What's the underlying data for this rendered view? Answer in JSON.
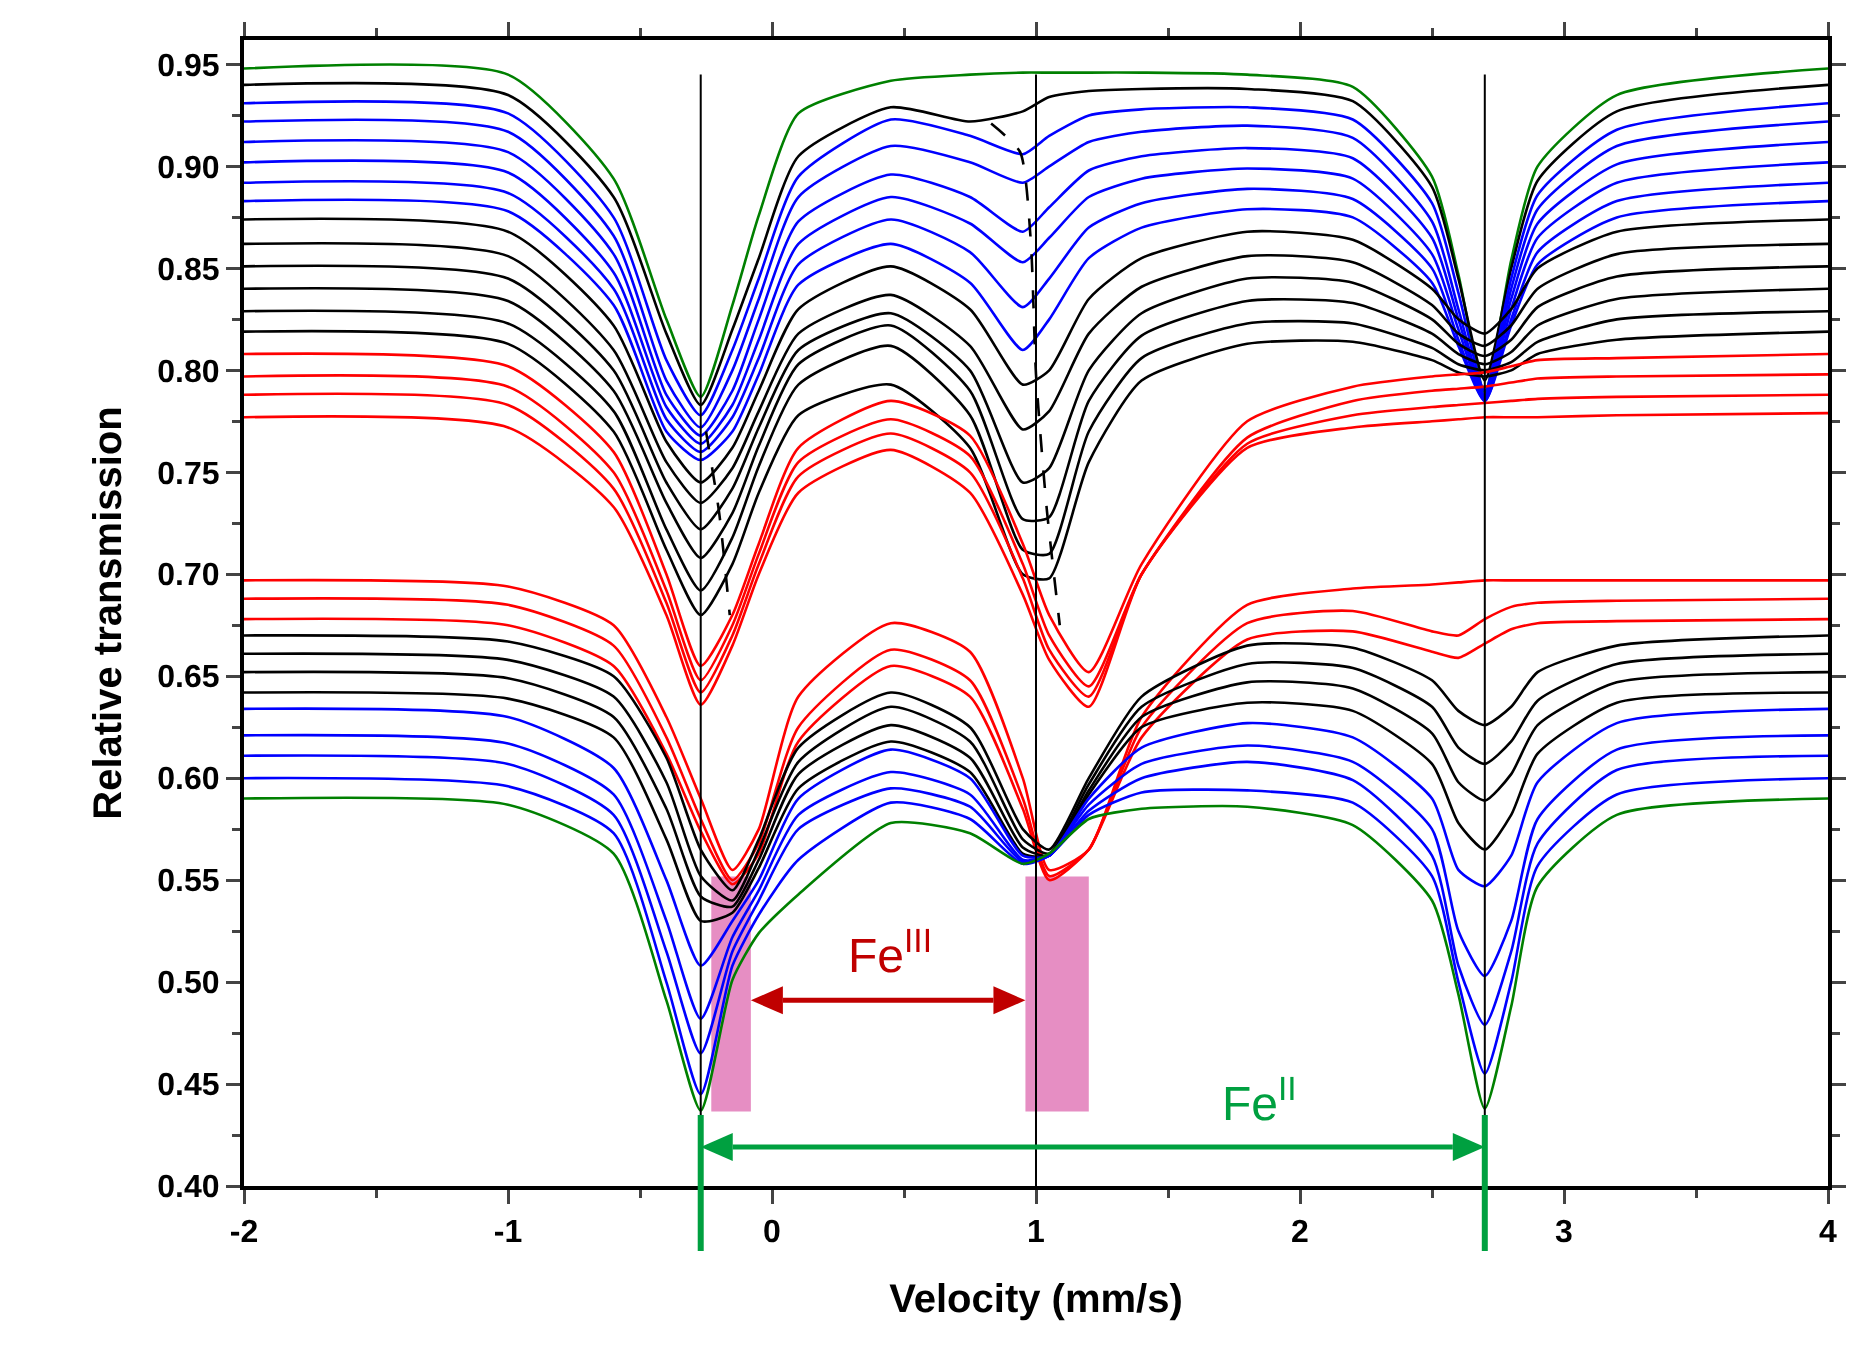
{
  "chart_data": {
    "type": "line",
    "xlabel": "Velocity (mm/s)",
    "ylabel": "Relative transmission",
    "x": [
      -2,
      -1,
      -0.6,
      -0.4,
      -0.27,
      -0.15,
      -0.05,
      0.1,
      0.45,
      0.75,
      0.95,
      1.05,
      1.2,
      1.4,
      1.8,
      2.2,
      2.5,
      2.6,
      2.7,
      2.8,
      2.9,
      3.2,
      4
    ],
    "series": [
      {
        "color": "#008000",
        "values": [
          0.948,
          0.945,
          0.894,
          0.825,
          0.787,
          0.832,
          0.876,
          0.926,
          0.942,
          0.945,
          0.946,
          0.946,
          0.946,
          0.946,
          0.945,
          0.939,
          0.895,
          0.847,
          0.789,
          0.854,
          0.9,
          0.935,
          0.948
        ]
      },
      {
        "color": "#000000",
        "values": [
          0.94,
          0.935,
          0.885,
          0.818,
          0.783,
          0.82,
          0.855,
          0.905,
          0.929,
          0.922,
          0.927,
          0.934,
          0.937,
          0.938,
          0.938,
          0.932,
          0.89,
          0.845,
          0.795,
          0.85,
          0.893,
          0.927,
          0.94
        ]
      },
      {
        "color": "#0000ff",
        "values": [
          0.931,
          0.926,
          0.875,
          0.805,
          0.778,
          0.81,
          0.845,
          0.895,
          0.923,
          0.915,
          0.906,
          0.915,
          0.925,
          0.928,
          0.929,
          0.923,
          0.882,
          0.838,
          0.79,
          0.845,
          0.886,
          0.918,
          0.931
        ]
      },
      {
        "color": "#0000ff",
        "values": [
          0.922,
          0.917,
          0.866,
          0.795,
          0.772,
          0.8,
          0.835,
          0.885,
          0.91,
          0.902,
          0.892,
          0.9,
          0.912,
          0.917,
          0.92,
          0.914,
          0.873,
          0.83,
          0.788,
          0.84,
          0.879,
          0.91,
          0.922
        ]
      },
      {
        "color": "#0000ff",
        "values": [
          0.912,
          0.907,
          0.857,
          0.788,
          0.768,
          0.79,
          0.825,
          0.873,
          0.896,
          0.885,
          0.868,
          0.88,
          0.898,
          0.905,
          0.909,
          0.904,
          0.865,
          0.825,
          0.787,
          0.835,
          0.872,
          0.901,
          0.912
        ]
      },
      {
        "color": "#0000ff",
        "values": [
          0.902,
          0.897,
          0.848,
          0.782,
          0.764,
          0.783,
          0.815,
          0.862,
          0.885,
          0.872,
          0.853,
          0.865,
          0.885,
          0.894,
          0.899,
          0.894,
          0.857,
          0.82,
          0.786,
          0.83,
          0.865,
          0.892,
          0.902
        ]
      },
      {
        "color": "#0000ff",
        "values": [
          0.892,
          0.887,
          0.84,
          0.776,
          0.76,
          0.777,
          0.806,
          0.852,
          0.874,
          0.858,
          0.831,
          0.845,
          0.87,
          0.882,
          0.889,
          0.884,
          0.85,
          0.815,
          0.785,
          0.825,
          0.858,
          0.883,
          0.892
        ]
      },
      {
        "color": "#0000ff",
        "values": [
          0.883,
          0.878,
          0.832,
          0.77,
          0.756,
          0.77,
          0.798,
          0.842,
          0.862,
          0.843,
          0.81,
          0.825,
          0.855,
          0.87,
          0.879,
          0.875,
          0.843,
          0.812,
          0.785,
          0.822,
          0.852,
          0.875,
          0.883
        ]
      },
      {
        "color": "#000000",
        "values": [
          0.874,
          0.868,
          0.822,
          0.765,
          0.745,
          0.762,
          0.79,
          0.83,
          0.851,
          0.83,
          0.793,
          0.8,
          0.835,
          0.855,
          0.868,
          0.864,
          0.84,
          0.825,
          0.818,
          0.83,
          0.85,
          0.868,
          0.874
        ]
      },
      {
        "color": "#000000",
        "values": [
          0.862,
          0.856,
          0.81,
          0.755,
          0.735,
          0.752,
          0.78,
          0.818,
          0.837,
          0.812,
          0.771,
          0.78,
          0.818,
          0.841,
          0.856,
          0.853,
          0.832,
          0.818,
          0.812,
          0.822,
          0.84,
          0.857,
          0.862
        ]
      },
      {
        "color": "#000000",
        "values": [
          0.851,
          0.845,
          0.8,
          0.745,
          0.722,
          0.742,
          0.772,
          0.81,
          0.828,
          0.8,
          0.745,
          0.752,
          0.8,
          0.828,
          0.845,
          0.843,
          0.825,
          0.813,
          0.807,
          0.815,
          0.831,
          0.846,
          0.851
        ]
      },
      {
        "color": "#000000",
        "values": [
          0.84,
          0.834,
          0.79,
          0.735,
          0.708,
          0.73,
          0.763,
          0.803,
          0.822,
          0.79,
          0.727,
          0.728,
          0.785,
          0.817,
          0.834,
          0.833,
          0.818,
          0.808,
          0.803,
          0.809,
          0.822,
          0.835,
          0.84
        ]
      },
      {
        "color": "#000000",
        "values": [
          0.829,
          0.823,
          0.78,
          0.722,
          0.692,
          0.718,
          0.753,
          0.793,
          0.812,
          0.778,
          0.712,
          0.71,
          0.77,
          0.806,
          0.823,
          0.823,
          0.811,
          0.803,
          0.8,
          0.804,
          0.814,
          0.825,
          0.829
        ]
      },
      {
        "color": "#000000",
        "values": [
          0.819,
          0.813,
          0.77,
          0.712,
          0.68,
          0.705,
          0.74,
          0.778,
          0.793,
          0.762,
          0.7,
          0.698,
          0.755,
          0.795,
          0.813,
          0.814,
          0.805,
          0.799,
          0.797,
          0.8,
          0.808,
          0.815,
          0.819
        ]
      },
      {
        "color": "#ff0000",
        "values": [
          0.808,
          0.802,
          0.76,
          0.7,
          0.655,
          0.68,
          0.715,
          0.762,
          0.785,
          0.768,
          0.715,
          0.68,
          0.652,
          0.705,
          0.775,
          0.792,
          0.797,
          0.798,
          0.799,
          0.802,
          0.805,
          0.806,
          0.808
        ]
      },
      {
        "color": "#ff0000",
        "values": [
          0.797,
          0.792,
          0.75,
          0.692,
          0.648,
          0.675,
          0.71,
          0.755,
          0.776,
          0.758,
          0.705,
          0.67,
          0.645,
          0.7,
          0.767,
          0.785,
          0.79,
          0.791,
          0.792,
          0.794,
          0.796,
          0.797,
          0.798
        ]
      },
      {
        "color": "#ff0000",
        "values": [
          0.788,
          0.783,
          0.742,
          0.686,
          0.642,
          0.67,
          0.705,
          0.748,
          0.769,
          0.75,
          0.698,
          0.663,
          0.64,
          0.7,
          0.764,
          0.778,
          0.782,
          0.783,
          0.784,
          0.785,
          0.786,
          0.787,
          0.788
        ]
      },
      {
        "color": "#ff0000",
        "values": [
          0.777,
          0.772,
          0.733,
          0.68,
          0.636,
          0.665,
          0.7,
          0.74,
          0.761,
          0.74,
          0.69,
          0.658,
          0.635,
          0.7,
          0.762,
          0.772,
          0.775,
          0.776,
          0.777,
          0.777,
          0.777,
          0.778,
          0.779
        ]
      },
      {
        "color": "#ff0000",
        "values": [
          0.697,
          0.694,
          0.675,
          0.63,
          0.59,
          0.555,
          0.575,
          0.64,
          0.676,
          0.662,
          0.6,
          0.555,
          0.565,
          0.63,
          0.685,
          0.693,
          0.695,
          0.696,
          0.697,
          0.697,
          0.697,
          0.697,
          0.697
        ]
      },
      {
        "color": "#ff0000",
        "values": [
          0.688,
          0.685,
          0.665,
          0.62,
          0.58,
          0.55,
          0.568,
          0.625,
          0.663,
          0.648,
          0.59,
          0.552,
          0.565,
          0.625,
          0.676,
          0.682,
          0.672,
          0.67,
          0.678,
          0.684,
          0.686,
          0.687,
          0.688
        ]
      },
      {
        "color": "#ff0000",
        "values": [
          0.678,
          0.675,
          0.655,
          0.612,
          0.574,
          0.548,
          0.563,
          0.618,
          0.655,
          0.64,
          0.585,
          0.55,
          0.565,
          0.62,
          0.668,
          0.672,
          0.662,
          0.659,
          0.666,
          0.673,
          0.676,
          0.677,
          0.678
        ]
      },
      {
        "color": "#000000",
        "values": [
          0.67,
          0.667,
          0.65,
          0.61,
          0.565,
          0.545,
          0.57,
          0.615,
          0.642,
          0.625,
          0.575,
          0.565,
          0.6,
          0.64,
          0.665,
          0.664,
          0.648,
          0.633,
          0.626,
          0.635,
          0.652,
          0.665,
          0.67
        ]
      },
      {
        "color": "#000000",
        "values": [
          0.661,
          0.658,
          0.64,
          0.598,
          0.552,
          0.54,
          0.565,
          0.608,
          0.635,
          0.618,
          0.57,
          0.563,
          0.597,
          0.635,
          0.656,
          0.654,
          0.635,
          0.615,
          0.607,
          0.618,
          0.638,
          0.656,
          0.661
        ]
      },
      {
        "color": "#000000",
        "values": [
          0.652,
          0.649,
          0.63,
          0.585,
          0.542,
          0.537,
          0.56,
          0.602,
          0.626,
          0.61,
          0.566,
          0.562,
          0.594,
          0.63,
          0.647,
          0.644,
          0.622,
          0.598,
          0.589,
          0.602,
          0.626,
          0.647,
          0.652
        ]
      },
      {
        "color": "#000000",
        "values": [
          0.642,
          0.639,
          0.62,
          0.57,
          0.53,
          0.534,
          0.556,
          0.595,
          0.618,
          0.603,
          0.563,
          0.562,
          0.592,
          0.625,
          0.637,
          0.633,
          0.607,
          0.578,
          0.565,
          0.582,
          0.612,
          0.637,
          0.642
        ]
      },
      {
        "color": "#0000ff",
        "values": [
          0.634,
          0.63,
          0.605,
          0.55,
          0.508,
          0.53,
          0.55,
          0.59,
          0.614,
          0.6,
          0.562,
          0.562,
          0.59,
          0.615,
          0.627,
          0.62,
          0.59,
          0.555,
          0.547,
          0.562,
          0.598,
          0.627,
          0.634
        ]
      },
      {
        "color": "#0000ff",
        "values": [
          0.621,
          0.617,
          0.592,
          0.53,
          0.482,
          0.522,
          0.545,
          0.582,
          0.603,
          0.592,
          0.56,
          0.562,
          0.587,
          0.607,
          0.616,
          0.608,
          0.575,
          0.525,
          0.503,
          0.53,
          0.58,
          0.614,
          0.621
        ]
      },
      {
        "color": "#0000ff",
        "values": [
          0.611,
          0.607,
          0.582,
          0.515,
          0.465,
          0.515,
          0.54,
          0.575,
          0.595,
          0.586,
          0.559,
          0.562,
          0.584,
          0.6,
          0.608,
          0.599,
          0.562,
          0.508,
          0.479,
          0.515,
          0.568,
          0.604,
          0.611
        ]
      },
      {
        "color": "#0000ff",
        "values": [
          0.6,
          0.596,
          0.573,
          0.5,
          0.445,
          0.508,
          0.533,
          0.56,
          0.588,
          0.58,
          0.558,
          0.562,
          0.582,
          0.593,
          0.594,
          0.588,
          0.552,
          0.5,
          0.455,
          0.5,
          0.557,
          0.592,
          0.6
        ]
      },
      {
        "color": "#008000",
        "values": [
          0.59,
          0.587,
          0.563,
          0.491,
          0.437,
          0.501,
          0.524,
          0.543,
          0.578,
          0.573,
          0.558,
          0.563,
          0.58,
          0.585,
          0.586,
          0.577,
          0.54,
          0.494,
          0.438,
          0.488,
          0.547,
          0.582,
          0.59
        ]
      },
      {
        "type": "line",
        "color": "#000000",
        "line_style": "dashed",
        "x": [
          0.83,
          0.94,
          0.98,
          1.0,
          1.04,
          1.09
        ],
        "values": [
          0.921,
          0.907,
          0.864,
          0.798,
          0.733,
          0.675
        ]
      },
      {
        "type": "line",
        "color": "#000000",
        "line_style": "dashed",
        "x": [
          -0.25,
          -0.2,
          -0.16
        ],
        "values": [
          0.77,
          0.73,
          0.68
        ]
      }
    ],
    "ref_lines": [
      {
        "axis": "x",
        "value": -0.27,
        "color": "#000000"
      },
      {
        "axis": "x",
        "value": 1.0,
        "color": "#000000"
      },
      {
        "axis": "x",
        "value": 2.7,
        "color": "#000000"
      }
    ],
    "bands": [
      {
        "axis": "x",
        "from": -0.23,
        "to": -0.08,
        "color": "#e27ab8"
      },
      {
        "axis": "x",
        "from": 0.96,
        "to": 1.2,
        "color": "#e27ab8"
      }
    ],
    "annotations": [
      "Fe$^{III}$",
      "Fe$^{II}$"
    ],
    "xlim": [
      -2,
      4
    ],
    "xticks": [
      -2,
      -1,
      0,
      1,
      2,
      3,
      4
    ],
    "ylim": [
      0.4,
      0.962
    ],
    "yticks": [
      {
        "value": 0.4,
        "label": "0.40"
      },
      {
        "value": 0.45,
        "label": "0.45"
      },
      {
        "value": 0.5,
        "label": "0.50"
      },
      {
        "value": 0.55,
        "label": "0.55"
      },
      {
        "value": 0.6,
        "label": "0.60"
      },
      {
        "value": 0.65,
        "label": "0.65"
      },
      {
        "value": 0.7,
        "label": "0.70"
      },
      {
        "value": 0.75,
        "label": "0.75"
      },
      {
        "value": 0.8,
        "label": "0.80"
      },
      {
        "value": 0.85,
        "label": "0.85"
      },
      {
        "value": 0.9,
        "label": "0.90"
      },
      {
        "value": 0.95,
        "label": "0.95"
      }
    ],
    "grid": false
  }
}
